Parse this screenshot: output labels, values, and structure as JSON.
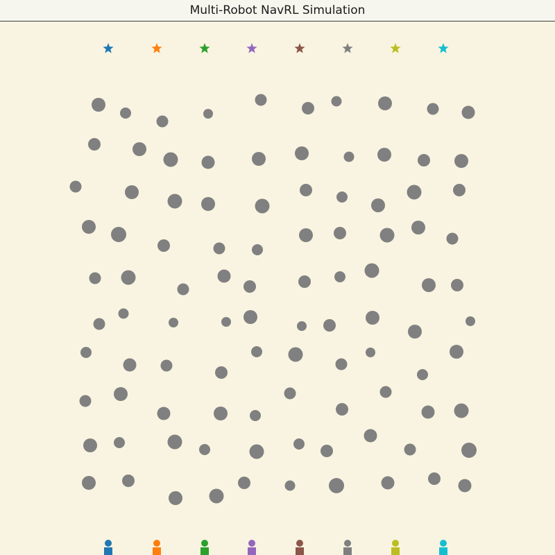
{
  "window": {
    "title": "Multi-Robot NavRL Simulation"
  },
  "scene": {
    "background_color": "#f9f4e1",
    "obstacle_color": "#808080",
    "robot_colors": [
      "#1f77b4",
      "#ff7f0e",
      "#2ca02c",
      "#9467bd",
      "#8c564b",
      "#7f7f7f",
      "#bcbd22",
      "#17becf"
    ],
    "goal_icon": "star-icon",
    "robot_icon": "robot-icon",
    "obstacle_icon": "circle-icon"
  }
}
